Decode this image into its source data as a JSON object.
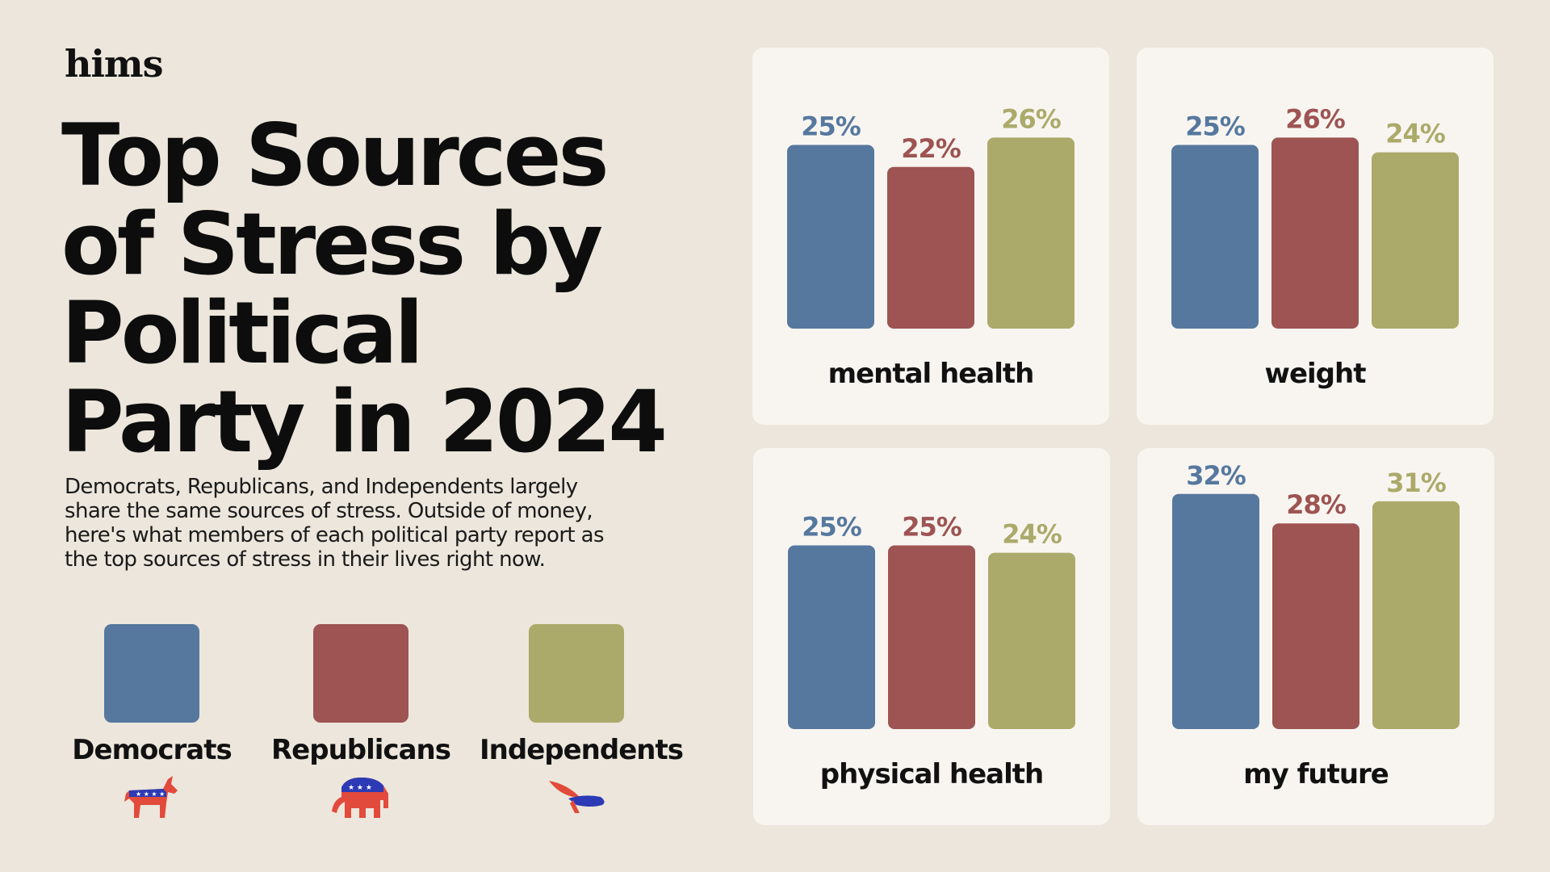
{
  "brand": "hims",
  "title": "Top Sources of Stress by Political Party in 2024",
  "subtitle": "Democrats, Republicans, and Independents largely share the same sources of stress. Outside of money, here's what members of each political party report as the top sources of stress in their lives right now.",
  "colors": {
    "democrats": "#56789e",
    "republicans": "#9d5452",
    "independents": "#abaa6a"
  },
  "legend": [
    {
      "label": "Democrats",
      "color": "#56789e",
      "icon": "donkey-icon"
    },
    {
      "label": "Republicans",
      "color": "#9d5452",
      "icon": "elephant-icon"
    },
    {
      "label": "Independents",
      "color": "#abaa6a",
      "icon": "eagle-icon"
    }
  ],
  "chart_data": [
    {
      "type": "bar",
      "xlabel": "mental health",
      "categories": [
        "Democrats",
        "Republicans",
        "Independents"
      ],
      "values": [
        25,
        22,
        26
      ],
      "data_labels": [
        "25%",
        "22%",
        "26%"
      ]
    },
    {
      "type": "bar",
      "xlabel": "weight",
      "categories": [
        "Democrats",
        "Republicans",
        "Independents"
      ],
      "values": [
        25,
        26,
        24
      ],
      "data_labels": [
        "25%",
        "26%",
        "24%"
      ]
    },
    {
      "type": "bar",
      "xlabel": "physical health",
      "categories": [
        "Democrats",
        "Republicans",
        "Independents"
      ],
      "values": [
        25,
        25,
        24
      ],
      "data_labels": [
        "25%",
        "25%",
        "24%"
      ]
    },
    {
      "type": "bar",
      "xlabel": "my future",
      "categories": [
        "Democrats",
        "Republicans",
        "Independents"
      ],
      "values": [
        32,
        28,
        31
      ],
      "data_labels": [
        "32%",
        "28%",
        "31%"
      ]
    }
  ]
}
